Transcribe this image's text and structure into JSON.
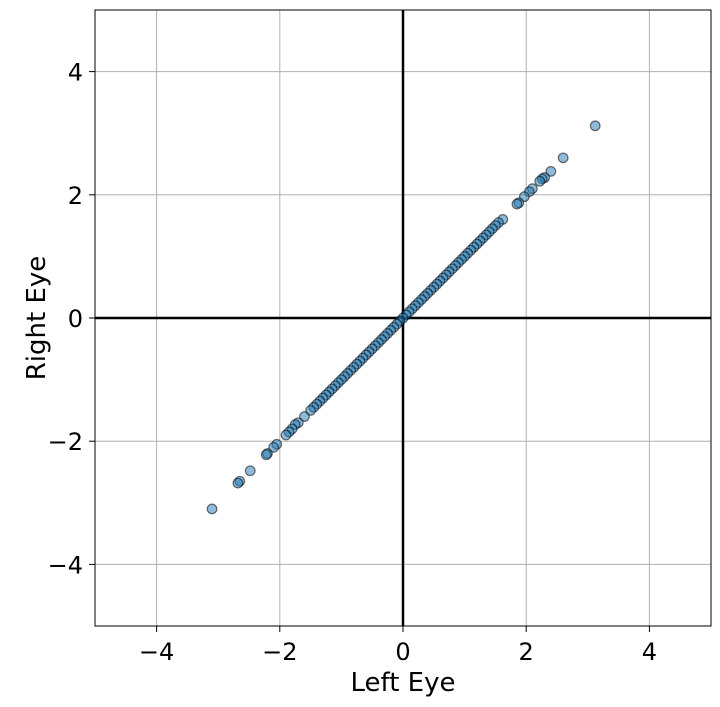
{
  "chart_data": {
    "type": "scatter",
    "title": "",
    "xlabel": "Left Eye",
    "ylabel": "Right Eye",
    "xlim": [
      -5,
      5
    ],
    "ylim": [
      -5,
      5
    ],
    "xticks": [
      -4,
      -2,
      0,
      2,
      4
    ],
    "yticks": [
      -4,
      -2,
      0,
      2,
      4
    ],
    "tick_labels": [
      "−4",
      "−2",
      "0",
      "2",
      "4"
    ],
    "grid": true,
    "zero_lines": true,
    "point_color": "#1f77b4",
    "edge_color": "#000000",
    "points": [
      [
        3.12,
        3.12
      ],
      [
        2.6,
        2.6
      ],
      [
        2.4,
        2.38
      ],
      [
        2.3,
        2.28
      ],
      [
        2.26,
        2.26
      ],
      [
        2.22,
        2.22
      ],
      [
        2.1,
        2.1
      ],
      [
        2.05,
        2.05
      ],
      [
        1.97,
        1.97
      ],
      [
        1.88,
        1.87
      ],
      [
        1.85,
        1.85
      ],
      [
        1.62,
        1.6
      ],
      [
        1.55,
        1.55
      ],
      [
        1.5,
        1.5
      ],
      [
        1.45,
        1.45
      ],
      [
        1.4,
        1.4
      ],
      [
        1.35,
        1.35
      ],
      [
        1.3,
        1.3
      ],
      [
        1.25,
        1.25
      ],
      [
        1.2,
        1.2
      ],
      [
        1.15,
        1.15
      ],
      [
        1.1,
        1.1
      ],
      [
        1.05,
        1.05
      ],
      [
        1.0,
        1.0
      ],
      [
        0.95,
        0.95
      ],
      [
        0.9,
        0.9
      ],
      [
        0.85,
        0.85
      ],
      [
        0.8,
        0.8
      ],
      [
        0.75,
        0.75
      ],
      [
        0.7,
        0.7
      ],
      [
        0.65,
        0.65
      ],
      [
        0.6,
        0.6
      ],
      [
        0.55,
        0.55
      ],
      [
        0.5,
        0.5
      ],
      [
        0.45,
        0.45
      ],
      [
        0.4,
        0.4
      ],
      [
        0.35,
        0.35
      ],
      [
        0.3,
        0.3
      ],
      [
        0.25,
        0.25
      ],
      [
        0.2,
        0.2
      ],
      [
        0.15,
        0.15
      ],
      [
        0.1,
        0.1
      ],
      [
        0.05,
        0.05
      ],
      [
        0.0,
        0.0
      ],
      [
        -0.05,
        -0.05
      ],
      [
        -0.1,
        -0.1
      ],
      [
        -0.15,
        -0.15
      ],
      [
        -0.2,
        -0.2
      ],
      [
        -0.25,
        -0.25
      ],
      [
        -0.3,
        -0.3
      ],
      [
        -0.35,
        -0.35
      ],
      [
        -0.4,
        -0.4
      ],
      [
        -0.45,
        -0.45
      ],
      [
        -0.5,
        -0.5
      ],
      [
        -0.55,
        -0.55
      ],
      [
        -0.6,
        -0.6
      ],
      [
        -0.65,
        -0.65
      ],
      [
        -0.7,
        -0.7
      ],
      [
        -0.75,
        -0.75
      ],
      [
        -0.8,
        -0.8
      ],
      [
        -0.85,
        -0.85
      ],
      [
        -0.9,
        -0.9
      ],
      [
        -0.95,
        -0.95
      ],
      [
        -1.0,
        -1.0
      ],
      [
        -1.05,
        -1.05
      ],
      [
        -1.1,
        -1.1
      ],
      [
        -1.15,
        -1.15
      ],
      [
        -1.2,
        -1.2
      ],
      [
        -1.25,
        -1.25
      ],
      [
        -1.3,
        -1.3
      ],
      [
        -1.35,
        -1.35
      ],
      [
        -1.4,
        -1.4
      ],
      [
        -1.45,
        -1.45
      ],
      [
        -1.5,
        -1.5
      ],
      [
        -1.6,
        -1.6
      ],
      [
        -1.7,
        -1.7
      ],
      [
        -1.75,
        -1.73
      ],
      [
        -1.8,
        -1.8
      ],
      [
        -1.85,
        -1.85
      ],
      [
        -1.9,
        -1.9
      ],
      [
        -2.05,
        -2.05
      ],
      [
        -2.1,
        -2.1
      ],
      [
        -2.2,
        -2.2
      ],
      [
        -2.22,
        -2.22
      ],
      [
        -2.48,
        -2.48
      ],
      [
        -2.65,
        -2.65
      ],
      [
        -2.68,
        -2.68
      ],
      [
        -3.1,
        -3.1
      ]
    ]
  }
}
